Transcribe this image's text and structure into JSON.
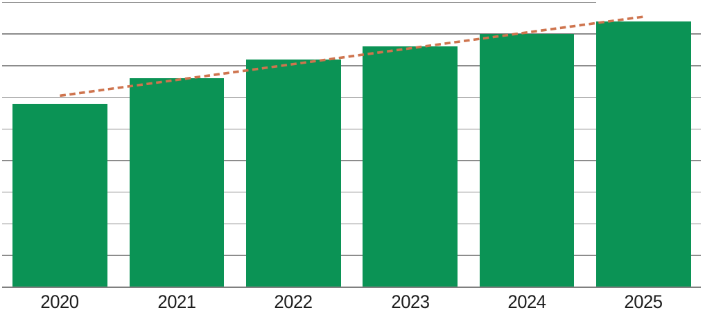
{
  "chart_data": {
    "type": "bar",
    "title": "",
    "xlabel": "",
    "ylabel": "",
    "categories": [
      "2020",
      "2021",
      "2022",
      "2023",
      "2024",
      "2025"
    ],
    "series": [
      {
        "name": "bars",
        "type": "bar",
        "values": [
          58,
          66,
          72,
          76,
          80,
          84
        ]
      },
      {
        "name": "trend",
        "type": "dashed-line",
        "values": [
          60.5,
          65.5,
          70.5,
          75.5,
          80.5,
          85.5
        ]
      }
    ],
    "ylim": [
      0,
      90
    ],
    "grid_step": 10,
    "grid": true,
    "y_axis_labels_visible": false,
    "legend": false,
    "colors": {
      "bar": "#0b9355",
      "trend": "#ce744e",
      "grid": "#8c8c8c",
      "axis": "#7f7f7f",
      "label": "#1c1c1c",
      "background": "#ffffff"
    }
  }
}
